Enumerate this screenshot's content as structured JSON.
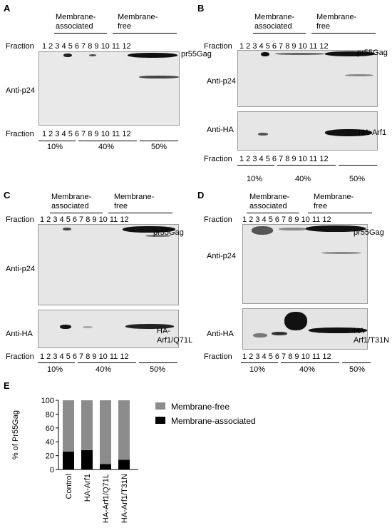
{
  "panelA": {
    "letter": "A",
    "hdr_assoc": "Membrane-\nassociated",
    "hdr_free": "Membrane-\nfree",
    "fraction": "Fraction",
    "lanes": "1   2   3   4   5   6   7   8   9  10  11 12",
    "lanes_top": "1    2   3   4   5   6   7   8  9  10 11 12",
    "band_label": "pr55Gag",
    "antibody": "Anti-p24",
    "pct": [
      "10%",
      "40%",
      "50%"
    ]
  },
  "panelB": {
    "letter": "B",
    "hdr_assoc": "Membrane-\nassociated",
    "hdr_free": "Membrane-\nfree",
    "fraction": "Fraction",
    "lanes_top": "1   2   3   4   5   6   7   8  9  10 11 12",
    "lanes": "1   2   3   4   5   6   7   8   9  10 11 12",
    "band_label": "pr55Gag",
    "antibody": "Anti-p24",
    "ha_antibody": "Anti-HA",
    "ha_label": "HA-Arf1",
    "pct": [
      "10%",
      "40%",
      "50%"
    ]
  },
  "panelC": {
    "letter": "C",
    "hdr_assoc": "Membrane-\nassociated",
    "hdr_free": "Membrane-\nfree",
    "fraction": "Fraction",
    "lanes_top": "1    2   3   4   5   6   7   8  9  10 11 12",
    "lanes": "1   2   3   4   5   6   7   8   9  10 11 12",
    "band_label": "pr55Gag",
    "antibody": "Anti-p24",
    "ha_antibody": "Anti-HA",
    "ha_label": "HA-\nArf1/Q71L",
    "pct": [
      "10%",
      "40%",
      "50%"
    ]
  },
  "panelD": {
    "letter": "D",
    "hdr_assoc": "Membrane-\nassociated",
    "hdr_free": "Membrane-\nfree",
    "fraction": "Fraction",
    "lanes_top": "1  2  3   4   5   6   7   8   9 10 11 12",
    "lanes": "1  2  3   4   5   6   7   8   9 10 11 12",
    "band_label": "pr55Gag",
    "antibody": "Anti-p24",
    "ha_antibody": "Anti-HA",
    "ha_label": "HA-\nArf1/T31N",
    "pct": [
      "10%",
      "40%",
      "50%"
    ]
  },
  "panelE": {
    "letter": "E",
    "chart_data": {
      "type": "bar",
      "stacked": true,
      "categories": [
        "Control",
        "HA-Arf1",
        "HA-Arf1/Q71L",
        "HA-Arf1/T31N"
      ],
      "series": [
        {
          "name": "Membrane-associated",
          "values": [
            26,
            28,
            8,
            14
          ],
          "color": "#000000"
        },
        {
          "name": "Membrane-free",
          "values": [
            74,
            72,
            92,
            86
          ],
          "color": "#8c8c8c"
        }
      ],
      "ylabel": "% of Pr55Gag",
      "ylim": [
        0,
        100
      ],
      "yticks": [
        "0",
        "20",
        "40",
        "60",
        "80",
        "100"
      ],
      "legend": "right"
    }
  }
}
